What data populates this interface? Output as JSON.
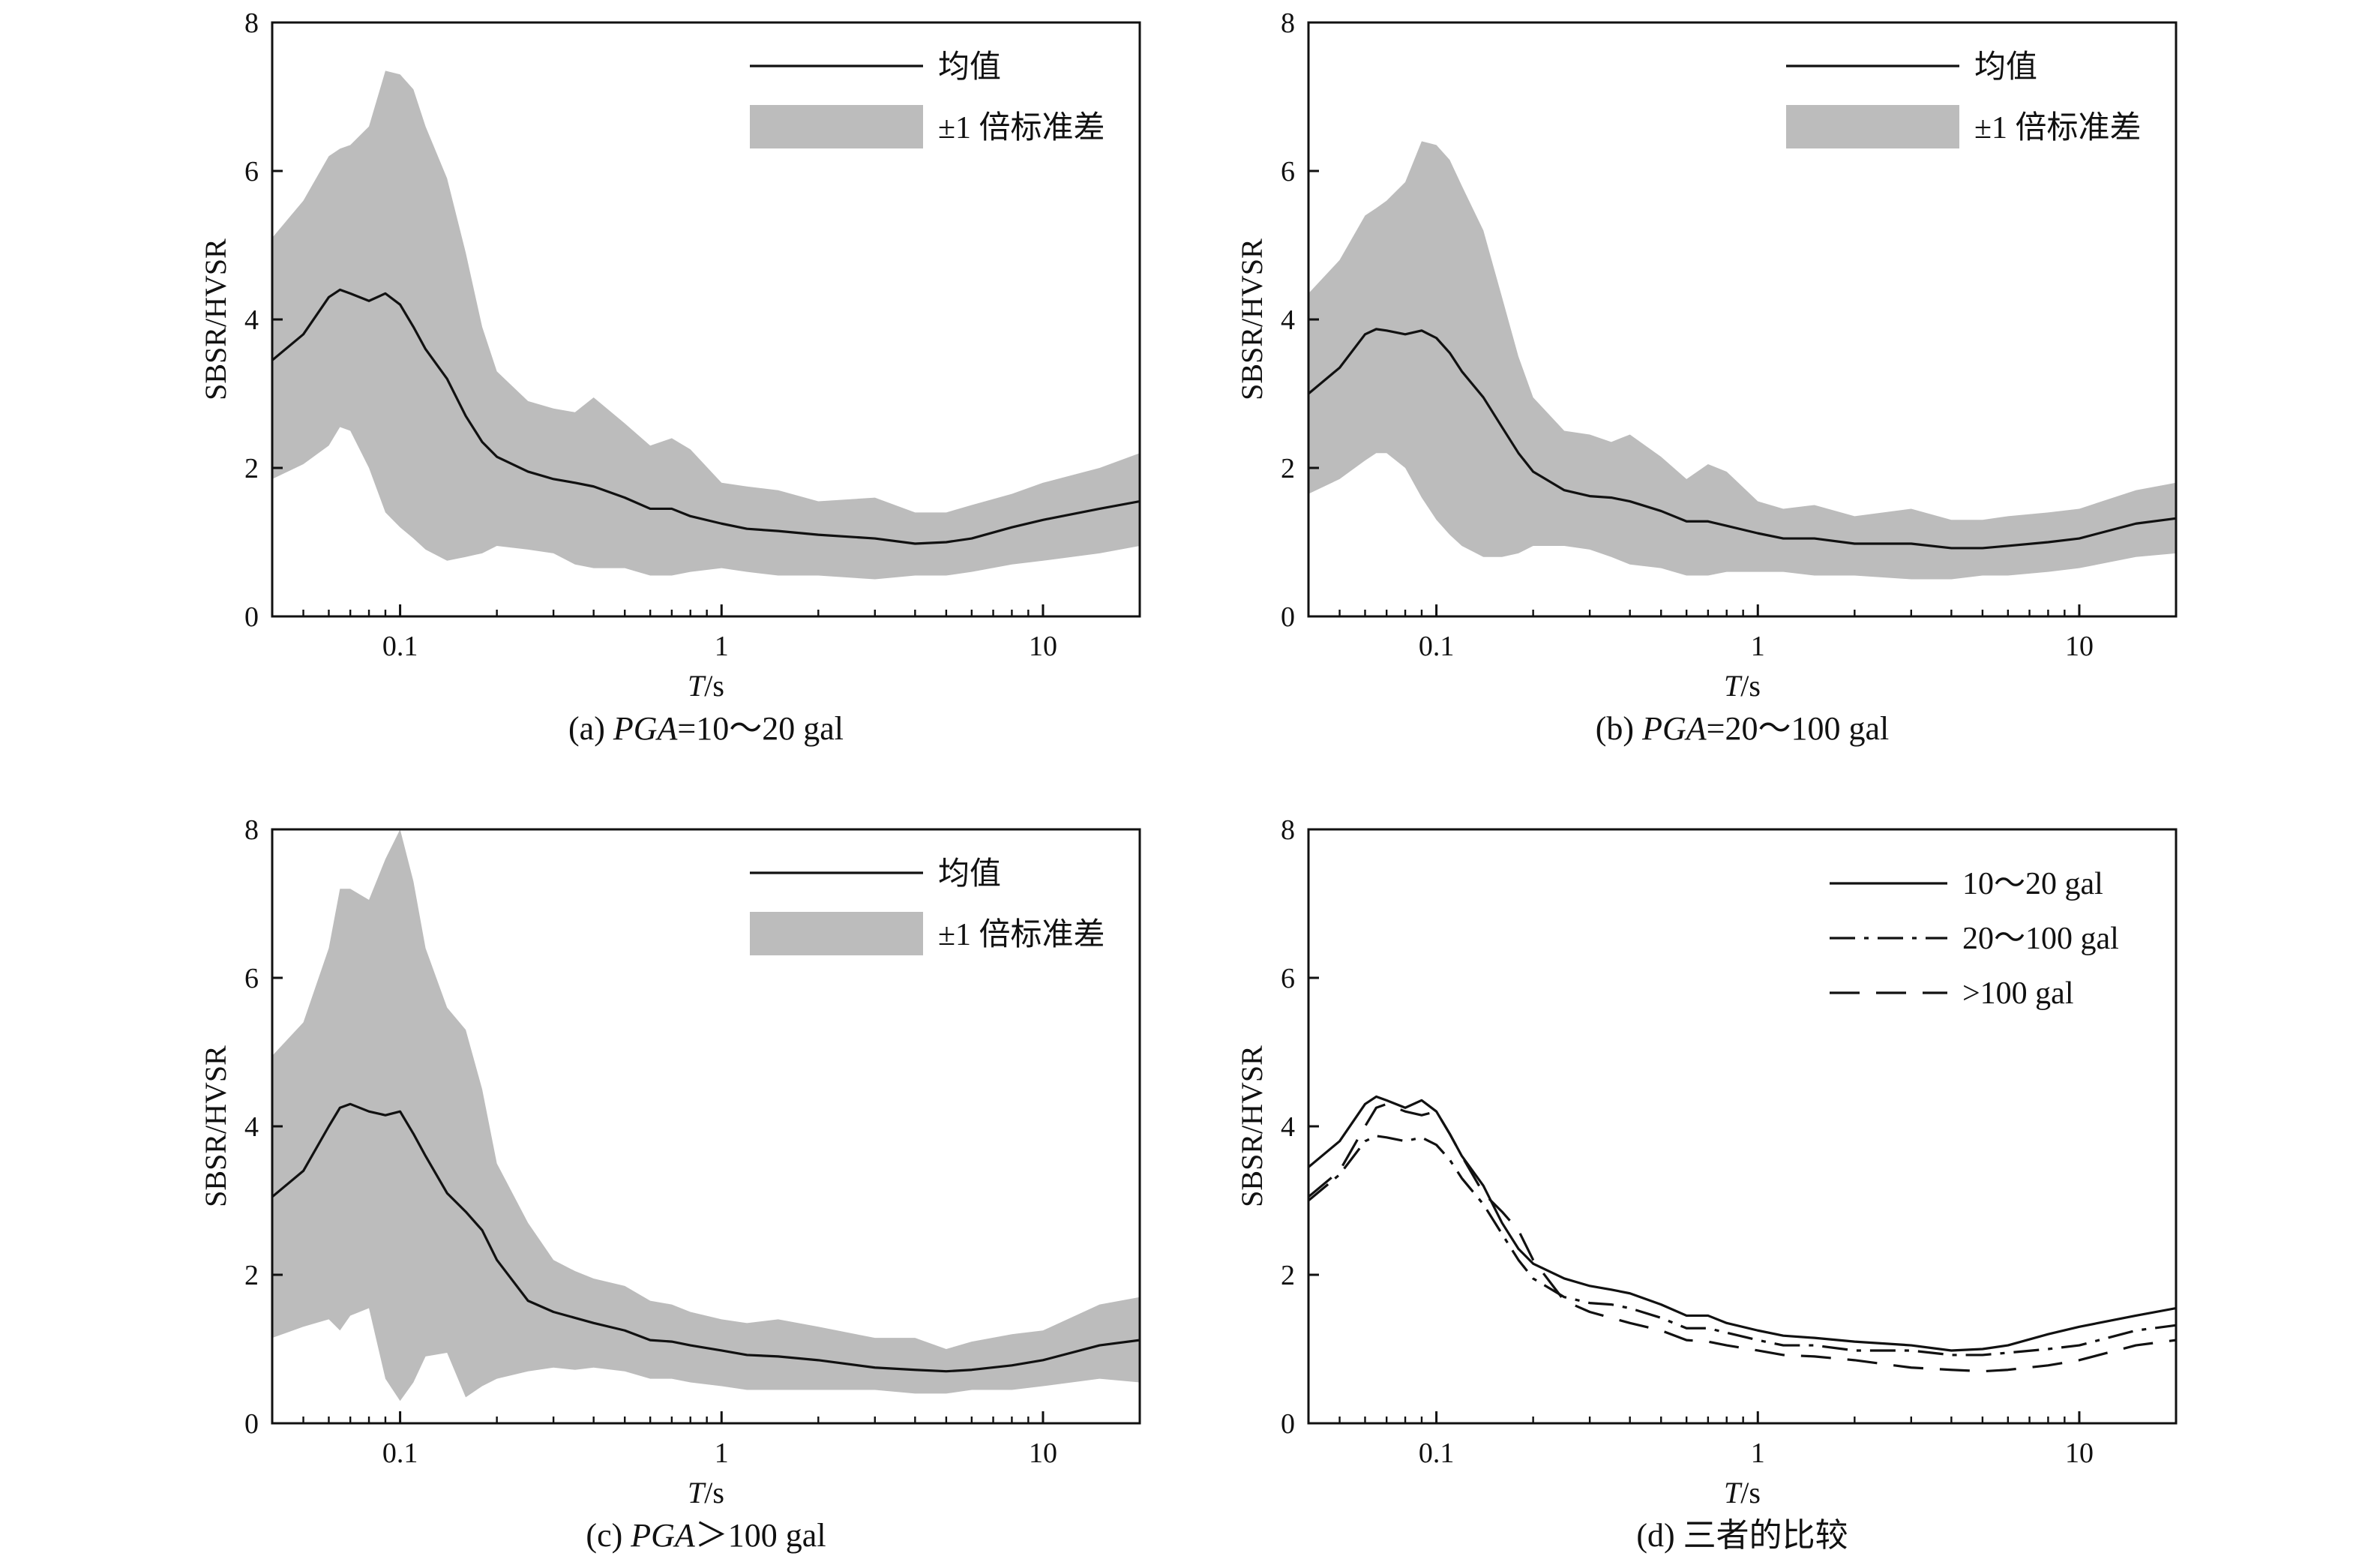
{
  "chart_data": [
    {
      "type": "area",
      "caption_prefix": "(a) ",
      "caption_italic": "PGA",
      "caption_suffix": "=10～20 gal",
      "xlabel_italic": "T",
      "xlabel_suffix": "/s",
      "ylabel": "SBSR/HVSR",
      "xscale": "log",
      "xlim": [
        0.04,
        20
      ],
      "ylim": [
        0,
        8
      ],
      "xticks": [
        0.1,
        1,
        10
      ],
      "xtick_labels": [
        "0.1",
        "1",
        "10"
      ],
      "yticks": [
        0,
        2,
        4,
        6,
        8
      ],
      "ytick_labels": [
        "0",
        "2",
        "4",
        "6",
        "8"
      ],
      "legend_position": "top-right",
      "legend": [
        {
          "label": "均值",
          "kind": "line"
        },
        {
          "label": "±1 倍标准差",
          "kind": "band"
        }
      ],
      "band_color": "#bcbcbc",
      "line_color": "#111111",
      "x": [
        0.04,
        0.05,
        0.06,
        0.065,
        0.07,
        0.08,
        0.09,
        0.1,
        0.11,
        0.12,
        0.14,
        0.16,
        0.18,
        0.2,
        0.25,
        0.3,
        0.35,
        0.4,
        0.5,
        0.6,
        0.7,
        0.8,
        1.0,
        1.2,
        1.5,
        2.0,
        3.0,
        4.0,
        5.0,
        6.0,
        8.0,
        10.0,
        15.0,
        20.0
      ],
      "series": [
        {
          "role": "mean",
          "values": [
            3.45,
            3.8,
            4.3,
            4.4,
            4.35,
            4.25,
            4.35,
            4.2,
            3.9,
            3.6,
            3.2,
            2.7,
            2.35,
            2.15,
            1.95,
            1.85,
            1.8,
            1.75,
            1.6,
            1.45,
            1.45,
            1.35,
            1.25,
            1.18,
            1.15,
            1.1,
            1.05,
            0.98,
            1.0,
            1.05,
            1.2,
            1.3,
            1.45,
            1.55
          ]
        },
        {
          "role": "upper",
          "values": [
            5.1,
            5.6,
            6.2,
            6.3,
            6.35,
            6.6,
            7.35,
            7.3,
            7.1,
            6.6,
            5.9,
            4.9,
            3.9,
            3.3,
            2.9,
            2.8,
            2.75,
            2.95,
            2.6,
            2.3,
            2.4,
            2.25,
            1.8,
            1.75,
            1.7,
            1.55,
            1.6,
            1.4,
            1.4,
            1.5,
            1.65,
            1.8,
            2.0,
            2.2
          ]
        },
        {
          "role": "lower",
          "values": [
            1.85,
            2.05,
            2.3,
            2.55,
            2.5,
            2.0,
            1.4,
            1.2,
            1.05,
            0.9,
            0.75,
            0.8,
            0.85,
            0.95,
            0.9,
            0.85,
            0.7,
            0.65,
            0.65,
            0.55,
            0.55,
            0.6,
            0.65,
            0.6,
            0.55,
            0.55,
            0.5,
            0.55,
            0.55,
            0.6,
            0.7,
            0.75,
            0.85,
            0.95
          ]
        }
      ]
    },
    {
      "type": "area",
      "caption_prefix": "(b) ",
      "caption_italic": "PGA",
      "caption_suffix": "=20～100 gal",
      "xlabel_italic": "T",
      "xlabel_suffix": "/s",
      "ylabel": "SBSR/HVSR",
      "xscale": "log",
      "xlim": [
        0.04,
        20
      ],
      "ylim": [
        0,
        8
      ],
      "xticks": [
        0.1,
        1,
        10
      ],
      "xtick_labels": [
        "0.1",
        "1",
        "10"
      ],
      "yticks": [
        0,
        2,
        4,
        6,
        8
      ],
      "ytick_labels": [
        "0",
        "2",
        "4",
        "6",
        "8"
      ],
      "legend_position": "top-right",
      "legend": [
        {
          "label": "均值",
          "kind": "line"
        },
        {
          "label": "±1 倍标准差",
          "kind": "band"
        }
      ],
      "band_color": "#bcbcbc",
      "line_color": "#111111",
      "x": [
        0.04,
        0.05,
        0.06,
        0.065,
        0.07,
        0.08,
        0.09,
        0.1,
        0.11,
        0.12,
        0.14,
        0.16,
        0.18,
        0.2,
        0.25,
        0.3,
        0.35,
        0.4,
        0.5,
        0.6,
        0.7,
        0.8,
        1.0,
        1.2,
        1.5,
        2.0,
        3.0,
        4.0,
        5.0,
        6.0,
        8.0,
        10.0,
        15.0,
        20.0
      ],
      "series": [
        {
          "role": "mean",
          "values": [
            3.0,
            3.35,
            3.8,
            3.87,
            3.85,
            3.8,
            3.85,
            3.75,
            3.55,
            3.3,
            2.95,
            2.55,
            2.2,
            1.95,
            1.7,
            1.62,
            1.6,
            1.55,
            1.42,
            1.28,
            1.28,
            1.22,
            1.12,
            1.05,
            1.05,
            0.98,
            0.98,
            0.92,
            0.92,
            0.95,
            1.0,
            1.05,
            1.25,
            1.32
          ]
        },
        {
          "role": "upper",
          "values": [
            4.35,
            4.8,
            5.4,
            5.5,
            5.6,
            5.85,
            6.4,
            6.35,
            6.15,
            5.8,
            5.2,
            4.3,
            3.5,
            2.95,
            2.5,
            2.45,
            2.35,
            2.45,
            2.15,
            1.85,
            2.05,
            1.95,
            1.55,
            1.45,
            1.5,
            1.35,
            1.45,
            1.3,
            1.3,
            1.35,
            1.4,
            1.45,
            1.7,
            1.8
          ]
        },
        {
          "role": "lower",
          "values": [
            1.65,
            1.85,
            2.1,
            2.2,
            2.2,
            2.0,
            1.6,
            1.3,
            1.1,
            0.95,
            0.8,
            0.8,
            0.85,
            0.95,
            0.95,
            0.9,
            0.8,
            0.7,
            0.65,
            0.55,
            0.55,
            0.6,
            0.6,
            0.6,
            0.55,
            0.55,
            0.5,
            0.5,
            0.55,
            0.55,
            0.6,
            0.65,
            0.8,
            0.85
          ]
        }
      ]
    },
    {
      "type": "area",
      "caption_prefix": "(c) ",
      "caption_italic": "PGA",
      "caption_suffix": "＞100 gal",
      "xlabel_italic": "T",
      "xlabel_suffix": "/s",
      "ylabel": "SBSR/HVSR",
      "xscale": "log",
      "xlim": [
        0.04,
        20
      ],
      "ylim": [
        0,
        8
      ],
      "xticks": [
        0.1,
        1,
        10
      ],
      "xtick_labels": [
        "0.1",
        "1",
        "10"
      ],
      "yticks": [
        0,
        2,
        4,
        6,
        8
      ],
      "ytick_labels": [
        "0",
        "2",
        "4",
        "6",
        "8"
      ],
      "legend_position": "top-right",
      "legend": [
        {
          "label": "均值",
          "kind": "line"
        },
        {
          "label": "±1 倍标准差",
          "kind": "band"
        }
      ],
      "band_color": "#bcbcbc",
      "line_color": "#111111",
      "x": [
        0.04,
        0.05,
        0.06,
        0.065,
        0.07,
        0.08,
        0.09,
        0.1,
        0.11,
        0.12,
        0.14,
        0.16,
        0.18,
        0.2,
        0.25,
        0.3,
        0.35,
        0.4,
        0.5,
        0.6,
        0.7,
        0.8,
        1.0,
        1.2,
        1.5,
        2.0,
        3.0,
        4.0,
        5.0,
        6.0,
        8.0,
        10.0,
        15.0,
        20.0
      ],
      "series": [
        {
          "role": "mean",
          "values": [
            3.05,
            3.4,
            4.0,
            4.25,
            4.3,
            4.2,
            4.15,
            4.2,
            3.9,
            3.6,
            3.1,
            2.85,
            2.6,
            2.2,
            1.65,
            1.5,
            1.42,
            1.35,
            1.25,
            1.12,
            1.1,
            1.05,
            0.98,
            0.92,
            0.9,
            0.85,
            0.75,
            0.72,
            0.7,
            0.72,
            0.78,
            0.85,
            1.05,
            1.12
          ]
        },
        {
          "role": "upper",
          "values": [
            4.95,
            5.4,
            6.4,
            7.2,
            7.2,
            7.05,
            7.6,
            8.0,
            7.3,
            6.4,
            5.6,
            5.3,
            4.5,
            3.5,
            2.7,
            2.2,
            2.05,
            1.95,
            1.85,
            1.65,
            1.6,
            1.5,
            1.4,
            1.35,
            1.4,
            1.3,
            1.15,
            1.15,
            1.0,
            1.1,
            1.2,
            1.25,
            1.6,
            1.7
          ]
        },
        {
          "role": "lower",
          "values": [
            1.15,
            1.3,
            1.4,
            1.25,
            1.45,
            1.55,
            0.6,
            0.3,
            0.55,
            0.9,
            0.95,
            0.35,
            0.5,
            0.6,
            0.7,
            0.75,
            0.72,
            0.75,
            0.7,
            0.6,
            0.6,
            0.55,
            0.5,
            0.45,
            0.45,
            0.45,
            0.45,
            0.4,
            0.4,
            0.45,
            0.45,
            0.5,
            0.6,
            0.55
          ]
        }
      ]
    },
    {
      "type": "line",
      "caption_prefix": "(d) ",
      "caption_italic": "",
      "caption_suffix": "三者的比较",
      "xlabel_italic": "T",
      "xlabel_suffix": "/s",
      "ylabel": "SBSR/HVSR",
      "xscale": "log",
      "xlim": [
        0.04,
        20
      ],
      "ylim": [
        0,
        8
      ],
      "xticks": [
        0.1,
        1,
        10
      ],
      "xtick_labels": [
        "0.1",
        "1",
        "10"
      ],
      "yticks": [
        0,
        2,
        4,
        6,
        8
      ],
      "ytick_labels": [
        "0",
        "2",
        "4",
        "6",
        "8"
      ],
      "legend_position": "top-right",
      "legend": [
        {
          "label": "10～20 gal",
          "kind": "line",
          "dash": "solid"
        },
        {
          "label": "20～100 gal",
          "kind": "line",
          "dash": "dashdot"
        },
        {
          "label": ">100 gal",
          "kind": "line",
          "dash": "dashed"
        }
      ],
      "line_color": "#111111",
      "x": [
        0.04,
        0.05,
        0.06,
        0.065,
        0.07,
        0.08,
        0.09,
        0.1,
        0.11,
        0.12,
        0.14,
        0.16,
        0.18,
        0.2,
        0.25,
        0.3,
        0.35,
        0.4,
        0.5,
        0.6,
        0.7,
        0.8,
        1.0,
        1.2,
        1.5,
        2.0,
        3.0,
        4.0,
        5.0,
        6.0,
        8.0,
        10.0,
        15.0,
        20.0
      ],
      "series": [
        {
          "label": "10～20 gal",
          "dash": "solid",
          "values": [
            3.45,
            3.8,
            4.3,
            4.4,
            4.35,
            4.25,
            4.35,
            4.2,
            3.9,
            3.6,
            3.2,
            2.7,
            2.35,
            2.15,
            1.95,
            1.85,
            1.8,
            1.75,
            1.6,
            1.45,
            1.45,
            1.35,
            1.25,
            1.18,
            1.15,
            1.1,
            1.05,
            0.98,
            1.0,
            1.05,
            1.2,
            1.3,
            1.45,
            1.55
          ]
        },
        {
          "label": "20～100 gal",
          "dash": "dashdot",
          "values": [
            3.0,
            3.35,
            3.8,
            3.87,
            3.85,
            3.8,
            3.85,
            3.75,
            3.55,
            3.3,
            2.95,
            2.55,
            2.2,
            1.95,
            1.7,
            1.62,
            1.6,
            1.55,
            1.42,
            1.28,
            1.28,
            1.22,
            1.12,
            1.05,
            1.05,
            0.98,
            0.98,
            0.92,
            0.92,
            0.95,
            1.0,
            1.05,
            1.25,
            1.32
          ]
        },
        {
          "label": ">100 gal",
          "dash": "dashed",
          "values": [
            3.05,
            3.4,
            4.0,
            4.25,
            4.3,
            4.2,
            4.15,
            4.2,
            3.9,
            3.6,
            3.1,
            2.85,
            2.6,
            2.2,
            1.65,
            1.5,
            1.42,
            1.35,
            1.25,
            1.12,
            1.1,
            1.05,
            0.98,
            0.92,
            0.9,
            0.85,
            0.75,
            0.72,
            0.7,
            0.72,
            0.78,
            0.85,
            1.05,
            1.12
          ]
        }
      ]
    }
  ]
}
